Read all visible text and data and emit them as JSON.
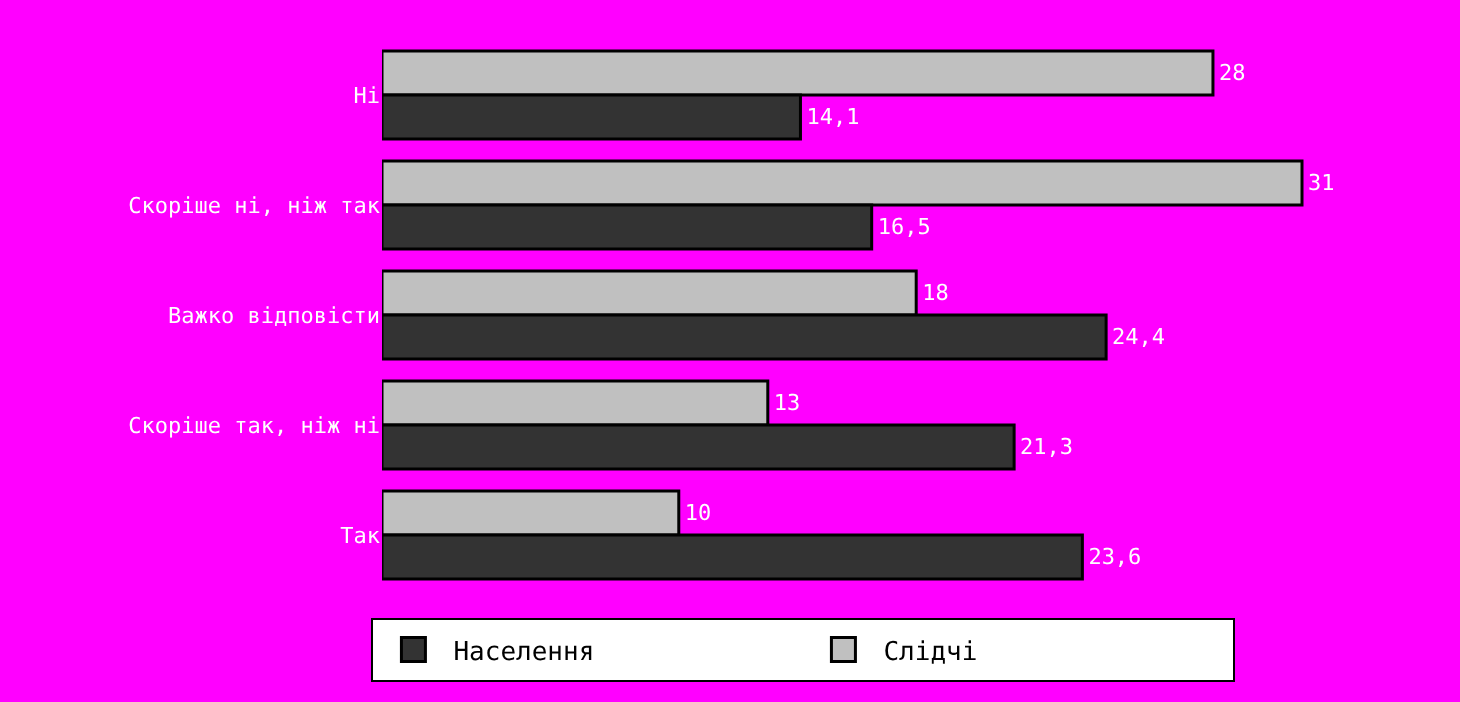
{
  "chart_data": {
    "type": "bar",
    "orientation": "horizontal",
    "categories": [
      "Ні",
      "Скоріше ні, ніж так",
      "Важко відповісти",
      "Скоріше так, ніж ні",
      "Так"
    ],
    "series": [
      {
        "name": "Населення",
        "color": "#333333",
        "values": [
          14.1,
          16.5,
          24.4,
          21.3,
          23.6
        ],
        "value_labels": [
          "14,1",
          "16,5",
          "24,4",
          "21,3",
          "23,6"
        ]
      },
      {
        "name": "Слідчі",
        "color": "#c0c0c0",
        "values": [
          28,
          31,
          18,
          13,
          10
        ],
        "value_labels": [
          "28",
          "31",
          "18",
          "13",
          "10"
        ]
      }
    ],
    "legend": "bottom"
  }
}
